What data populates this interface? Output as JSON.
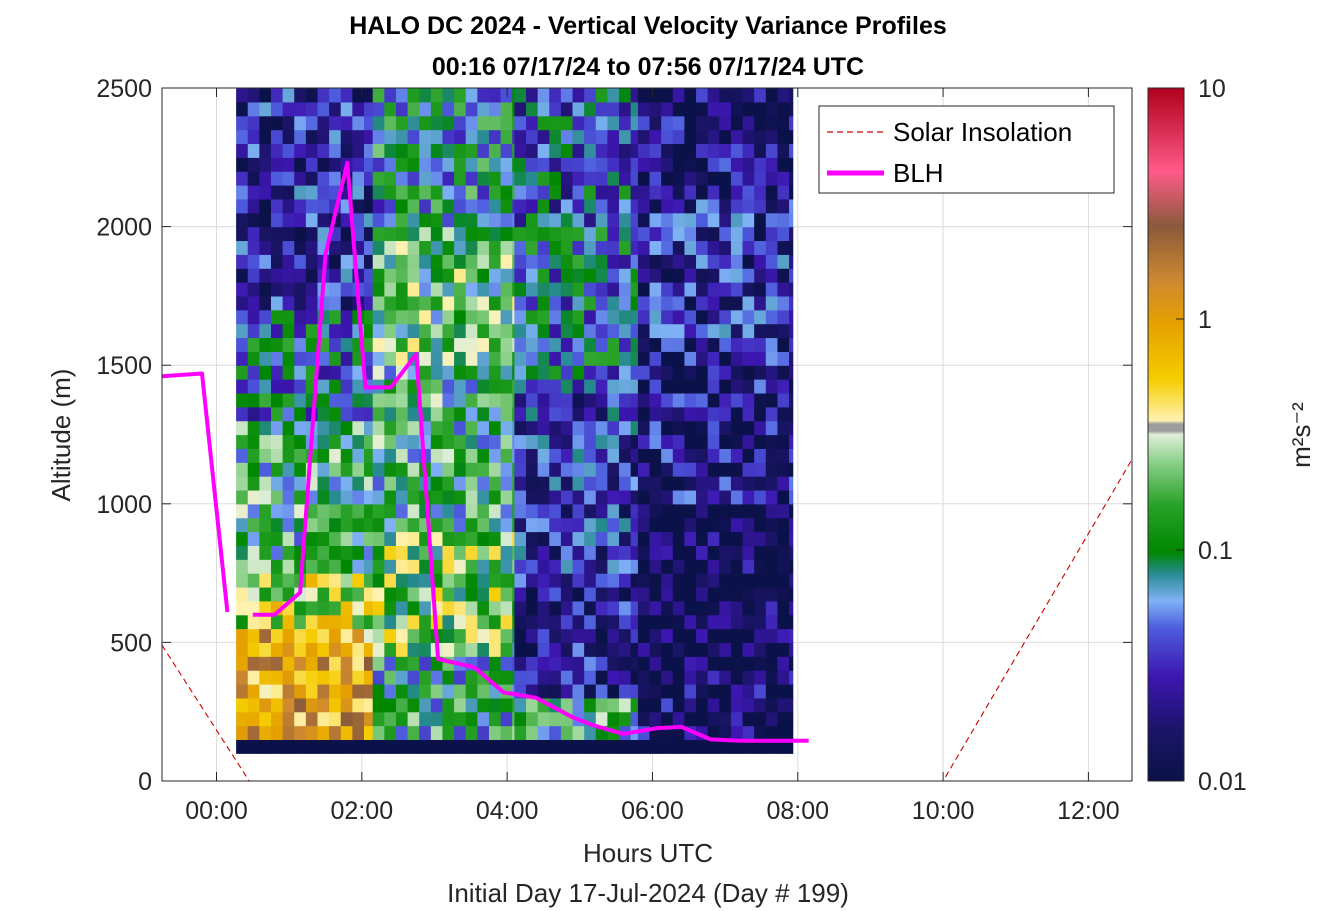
{
  "chart_data": {
    "type": "heatmap",
    "title": "HALO DC 2024 - Vertical Velocity Variance Profiles",
    "subtitle": "00:16 07/17/24 to 07:56 07/17/24  UTC",
    "xlabel": "Hours UTC",
    "xlabel2": "Initial Day 17-Jul-2024 (Day # 199)",
    "ylabel": "Altitude (m)",
    "xlim_hours": [
      -0.75,
      12.6
    ],
    "ylim": [
      0,
      2500
    ],
    "x_ticks": [
      0,
      2,
      4,
      6,
      8,
      10,
      12
    ],
    "x_tick_labels": [
      "00:00",
      "02:00",
      "04:00",
      "06:00",
      "08:00",
      "10:00",
      "12:00"
    ],
    "y_ticks": [
      0,
      500,
      1000,
      1500,
      2000,
      2500
    ],
    "y_tick_labels": [
      "0",
      "500",
      "1000",
      "1500",
      "2000",
      "2500"
    ],
    "grid": true,
    "colorbar": {
      "label": "m²s⁻²",
      "scale": "log",
      "range": [
        0.01,
        10
      ],
      "tick_values": [
        0.01,
        0.1,
        1,
        10
      ],
      "tick_labels": [
        "0.01",
        "0.1",
        "1",
        "10"
      ]
    },
    "legend": {
      "placement": "top-right",
      "entries": [
        {
          "label": "Solar Insolation",
          "color": "#cc0000",
          "style": "dashed"
        },
        {
          "label": "BLH",
          "color": "#ff00ff",
          "style": "solid"
        }
      ]
    },
    "heatmap": {
      "x_start_hour": 0.27,
      "x_end_hour": 7.93,
      "y_start": 100,
      "y_end": 2500,
      "profile_columns": [
        {
          "label": "00:16-02:10",
          "col_start": 0.27,
          "col_end": 2.15,
          "bands": [
            [
              100,
              150,
              0.01
            ],
            [
              150,
              550,
              0.9
            ],
            [
              550,
              750,
              0.3
            ],
            [
              750,
              1300,
              0.12
            ],
            [
              1300,
              1700,
              0.06
            ],
            [
              1700,
              2500,
              0.025
            ]
          ]
        },
        {
          "label": "02:10-04:10",
          "col_start": 2.15,
          "col_end": 4.1,
          "bands": [
            [
              100,
              150,
              0.01
            ],
            [
              150,
              450,
              0.1
            ],
            [
              450,
              900,
              0.2
            ],
            [
              900,
              1500,
              0.12
            ],
            [
              1500,
              2000,
              0.15
            ],
            [
              2000,
              2500,
              0.08
            ]
          ]
        },
        {
          "label": "04:10-05:50",
          "col_start": 4.1,
          "col_end": 5.8,
          "bands": [
            [
              100,
              150,
              0.01
            ],
            [
              150,
              300,
              0.12
            ],
            [
              300,
              700,
              0.02
            ],
            [
              700,
              1400,
              0.03
            ],
            [
              1400,
              2000,
              0.06
            ],
            [
              2000,
              2500,
              0.05
            ]
          ]
        },
        {
          "label": "05:50-07:56",
          "col_start": 5.8,
          "col_end": 7.93,
          "bands": [
            [
              100,
              150,
              0.01
            ],
            [
              150,
              400,
              0.015
            ],
            [
              400,
              1000,
              0.012
            ],
            [
              1000,
              1600,
              0.02
            ],
            [
              1600,
              2100,
              0.025
            ],
            [
              2100,
              2500,
              0.018
            ]
          ]
        }
      ]
    },
    "series": [
      {
        "name": "BLH",
        "x_hours": [
          -0.75,
          -0.2,
          0.15,
          null,
          0.5,
          0.8,
          1.15,
          1.5,
          1.8,
          2.05,
          2.4,
          2.75,
          3.05,
          3.55,
          3.95,
          4.4,
          4.9,
          5.2,
          5.6,
          6.05,
          6.4,
          6.8,
          7.2,
          7.6,
          8.15
        ],
        "y": [
          1460,
          1470,
          610,
          null,
          600,
          600,
          680,
          1900,
          2230,
          1420,
          1420,
          1540,
          440,
          410,
          320,
          300,
          230,
          200,
          170,
          190,
          195,
          150,
          145,
          145,
          145
        ]
      },
      {
        "name": "Solar Insolation",
        "x_hours": [
          -0.75,
          0.45,
          10.0,
          12.6
        ],
        "y": [
          490,
          0,
          0,
          1160
        ]
      }
    ]
  }
}
